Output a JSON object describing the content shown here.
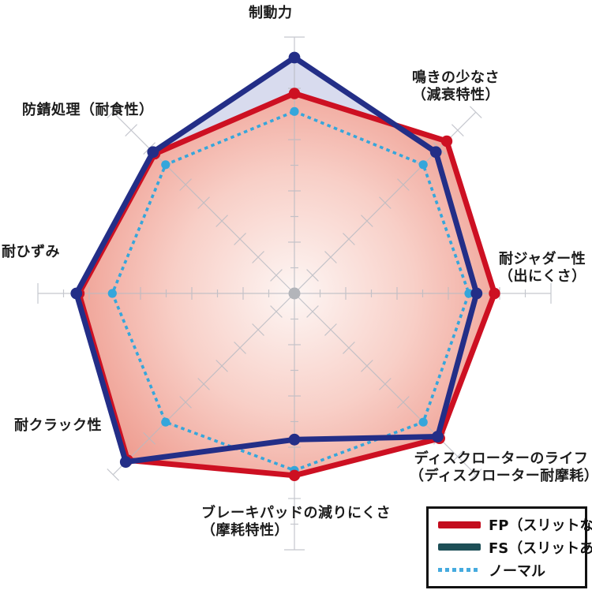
{
  "chart_data": {
    "type": "radar",
    "title": "",
    "scale_max": 10,
    "grid": "8 spoke axes with unit tick marks, gray",
    "categories": [
      "制動力",
      "鳴きの少なさ（減衰特性）",
      "耐ジャダー性（出にくさ）",
      "ディスクローターのライフ（ディスクローター耐摩耗）",
      "ブレーキパッドの減りにくさ（摩耗特性）",
      "耐クラック性",
      "耐ひずみ",
      "防錆処理（耐食性）"
    ],
    "series": [
      {
        "name": "FP（スリットなし）",
        "style": "solid",
        "color": "#cd1022",
        "fill": "gradient",
        "gradient_stops": [
          "#fdf6f4",
          "#f8cfc7",
          "#ee998c"
        ],
        "values": [
          7.8,
          8.4,
          7.8,
          8.0,
          7.1,
          9.2,
          8.4,
          7.7
        ]
      },
      {
        "name": "FS（スリットあり）",
        "style": "solid",
        "color": "#232e87",
        "fill": "#d8dbee",
        "values": [
          9.2,
          7.8,
          7.1,
          7.9,
          5.7,
          9.3,
          8.5,
          7.8
        ]
      },
      {
        "name": "ノーマル",
        "style": "dotted",
        "color": "#35a6db",
        "fill": "none",
        "values": [
          7.1,
          7.1,
          6.8,
          7.1,
          6.9,
          7.1,
          7.1,
          7.1
        ]
      }
    ],
    "axis_color": "#b7bac2",
    "center_dot_color": "#b3b5ba",
    "legend_position": "bottom-right"
  },
  "axis_labels": [
    {
      "l1": "制動力",
      "l2": ""
    },
    {
      "l1": "鳴きの少なさ",
      "l2": "（減衰特性）"
    },
    {
      "l1": "耐ジャダー性",
      "l2": "（出にくさ）"
    },
    {
      "l1": "ディスクローターのライフ",
      "l2": "（ディスクローター耐摩耗）"
    },
    {
      "l1": "ブレーキパッドの減りにくさ",
      "l2": "（摩耗特性）"
    },
    {
      "l1": "耐クラック性",
      "l2": ""
    },
    {
      "l1": "耐ひずみ",
      "l2": ""
    },
    {
      "l1": "防錆処理（耐食性）",
      "l2": ""
    }
  ],
  "legend": {
    "items": [
      {
        "label": "FP（スリットなし）",
        "color": "#c30d1e",
        "style": "solid"
      },
      {
        "label": "FS（スリットあり）",
        "color": "#1d4f57",
        "style": "solid"
      },
      {
        "label": "ノーマル",
        "color": "#45abdf",
        "style": "dotted"
      }
    ]
  }
}
